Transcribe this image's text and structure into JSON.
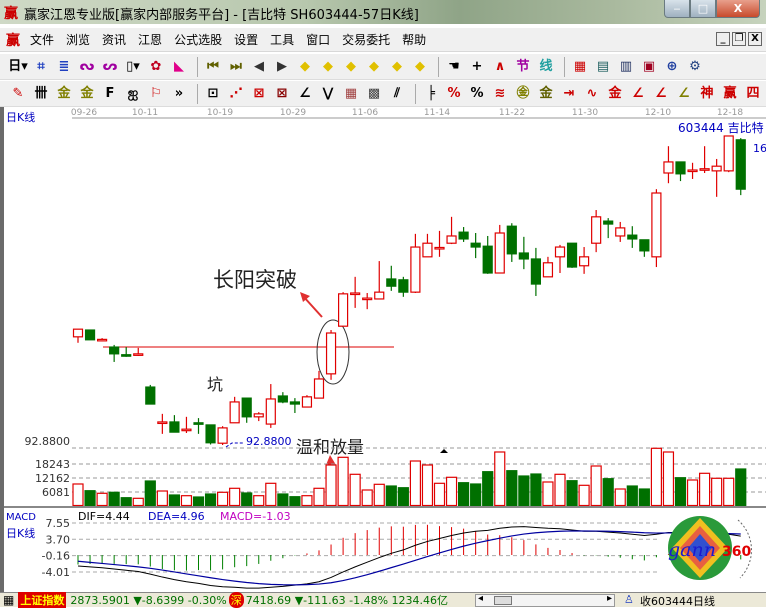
{
  "window": {
    "title": "赢家江恩专业版[赢家内部服务平台] - [吉比特  SH603444-57日K线]",
    "logo": "赢",
    "min_label": "‒",
    "max_label": "□",
    "close_label": "X"
  },
  "menu": {
    "logo": "赢",
    "items": [
      "文件",
      "浏览",
      "资讯",
      "江恩",
      "公式选股",
      "设置",
      "工具",
      "窗口",
      "交易委托",
      "帮助"
    ],
    "mdi_buttons": [
      "_",
      "❐",
      "X"
    ]
  },
  "toolbar1": [
    {
      "icon": "period-day-dropdown",
      "glyph": "日▾",
      "color": "#000"
    },
    {
      "icon": "kline-view-icon",
      "glyph": "⌗",
      "color": "#2040c0"
    },
    {
      "icon": "document-icon",
      "glyph": "≣",
      "color": "#2040c0"
    },
    {
      "icon": "chart-3-icon",
      "glyph": "ᔓ",
      "color": "#a000a0"
    },
    {
      "icon": "chart-9-icon",
      "glyph": "ᔕ",
      "color": "#a000a0"
    },
    {
      "icon": "candle-dropdown-icon",
      "glyph": "▯▾",
      "color": "#000"
    },
    {
      "icon": "pattern-icon",
      "glyph": "✿",
      "color": "#c00020"
    },
    {
      "icon": "flag-icon",
      "glyph": "◣",
      "color": "#e0008a"
    },
    {
      "sep": true
    },
    {
      "icon": "first-icon",
      "glyph": "⏮",
      "color": "#606000"
    },
    {
      "icon": "last-icon",
      "glyph": "⏭",
      "color": "#606000"
    },
    {
      "icon": "prev-icon",
      "glyph": "◀",
      "color": "#333"
    },
    {
      "icon": "next-icon",
      "glyph": "▶",
      "color": "#333"
    },
    {
      "icon": "nav-left-diamond-icon",
      "glyph": "◆",
      "color": "#e0c000"
    },
    {
      "icon": "nav-right-diamond-icon",
      "glyph": "◆",
      "color": "#e0c000"
    },
    {
      "icon": "zoom-h-diamond-icon",
      "glyph": "◆",
      "color": "#e0c000"
    },
    {
      "icon": "shrink-h-diamond-icon",
      "glyph": "◆",
      "color": "#e0c000"
    },
    {
      "icon": "expand-diamond-icon",
      "glyph": "◆",
      "color": "#e0c000"
    },
    {
      "icon": "move-diamond-icon",
      "glyph": "◆",
      "color": "#e0c000"
    },
    {
      "sep": true
    },
    {
      "icon": "hand-icon",
      "glyph": "☚",
      "color": "#000"
    },
    {
      "icon": "crosshair-icon",
      "glyph": "+",
      "color": "#000"
    },
    {
      "icon": "draw-line-icon",
      "glyph": "∧",
      "color": "#c00"
    },
    {
      "icon": "festival-icon",
      "glyph": "节",
      "color": "#a000a0"
    },
    {
      "icon": "cycle-icon",
      "glyph": "线",
      "color": "#20a0a0"
    },
    {
      "sep": true
    },
    {
      "icon": "calendar-icon",
      "glyph": "▦",
      "color": "#c00"
    },
    {
      "icon": "calculator-icon",
      "glyph": "▤",
      "color": "#206060"
    },
    {
      "icon": "notes-icon",
      "glyph": "▥",
      "color": "#203060"
    },
    {
      "icon": "save-icon",
      "glyph": "▣",
      "color": "#a00020"
    },
    {
      "icon": "network-icon",
      "glyph": "⊕",
      "color": "#2040a0"
    },
    {
      "icon": "trade-icon",
      "glyph": "⚙",
      "color": "#204080"
    }
  ],
  "toolbar2": [
    {
      "icon": "pen-icon",
      "glyph": "✎",
      "color": "#c00"
    },
    {
      "icon": "grid-lines-icon",
      "glyph": "卌",
      "color": "#000"
    },
    {
      "icon": "gold-1-icon",
      "glyph": "金",
      "color": "#808000"
    },
    {
      "icon": "gold-2-icon",
      "glyph": "金",
      "color": "#808000"
    },
    {
      "icon": "f-tool-icon",
      "glyph": "F",
      "color": "#000"
    },
    {
      "icon": "spiral-icon",
      "glyph": "ஐ",
      "color": "#000"
    },
    {
      "icon": "rocket-icon",
      "glyph": "⚐",
      "color": "#c00"
    },
    {
      "icon": "more-icon",
      "glyph": "»",
      "color": "#000"
    },
    {
      "sep": true
    },
    {
      "icon": "box-tool-icon",
      "glyph": "⊡",
      "color": "#000"
    },
    {
      "icon": "fan-lines-icon",
      "glyph": "⋰",
      "color": "#c00"
    },
    {
      "icon": "gann-box-icon",
      "glyph": "⊠",
      "color": "#c00"
    },
    {
      "icon": "gann-square-icon",
      "glyph": "⊠",
      "color": "#800"
    },
    {
      "icon": "angle-icon",
      "glyph": "∠",
      "color": "#000"
    },
    {
      "icon": "wave-icon",
      "glyph": "⋁",
      "color": "#000"
    },
    {
      "icon": "grid-square-icon",
      "glyph": "▦",
      "color": "#a04040"
    },
    {
      "icon": "grid-square-2-icon",
      "glyph": "▩",
      "color": "#404040"
    },
    {
      "icon": "parallel-lines-icon",
      "glyph": "⫽",
      "color": "#000"
    },
    {
      "sep": true
    },
    {
      "icon": "ruler-icon",
      "glyph": "╞",
      "color": "#000"
    },
    {
      "icon": "percent-red-icon",
      "glyph": "%",
      "color": "#c00"
    },
    {
      "icon": "percent-icon",
      "glyph": "%",
      "color": "#000"
    },
    {
      "icon": "percent-lines-icon",
      "glyph": "≋",
      "color": "#c00"
    },
    {
      "icon": "gold-circle-icon",
      "glyph": "㊎",
      "color": "#808000"
    },
    {
      "icon": "gold-lines-icon",
      "glyph": "金",
      "color": "#606000"
    },
    {
      "icon": "arrow-tool-icon",
      "glyph": "⇥",
      "color": "#c00"
    },
    {
      "icon": "wave-lines-icon",
      "glyph": "∿",
      "color": "#c00"
    },
    {
      "icon": "gold-red-icon",
      "glyph": "金",
      "color": "#c00"
    },
    {
      "icon": "j-angle-icon",
      "glyph": "∠",
      "color": "#c00"
    },
    {
      "icon": "f-angle-icon",
      "glyph": "∠",
      "color": "#c00"
    },
    {
      "icon": "gold-angle-icon",
      "glyph": "∠",
      "color": "#808000"
    },
    {
      "icon": "god-angle-icon",
      "glyph": "神",
      "color": "#c00"
    },
    {
      "icon": "win-angle-icon",
      "glyph": "赢",
      "color": "#c00"
    },
    {
      "icon": "four-angle-icon",
      "glyph": "四",
      "color": "#c00"
    }
  ],
  "chart": {
    "period_label": "日K线",
    "stock_label": "603444  吉比特",
    "high_label_partial": "16",
    "low_axis_label": "92.8800",
    "low_marker_label": "92.8800",
    "dates": [
      "09-26",
      "10-11",
      "10-19",
      "10-29",
      "11-06",
      "11-14",
      "11-22",
      "11-30",
      "12-10",
      "12-18"
    ],
    "volume_axis": [
      "18243",
      "12162",
      "6081"
    ],
    "annotations": {
      "breakout": "长阳突破",
      "pit": "坑",
      "volume": "温和放量"
    },
    "colors": {
      "up": "#e00000",
      "down": "#007000",
      "annotation_arrow": "#e03030",
      "label_blue": "#0000c0"
    }
  },
  "chart_data": {
    "type": "candlestick",
    "ohlc_order": [
      "open",
      "high",
      "low",
      "close"
    ],
    "candles": [
      [
        118.3,
        120.1,
        116.9,
        120.1
      ],
      [
        119.9,
        119.9,
        117.6,
        117.6
      ],
      [
        117.6,
        118.0,
        117.2,
        117.7
      ],
      [
        115.9,
        116.4,
        112.4,
        114.3
      ],
      [
        114.1,
        115.9,
        113.6,
        114.0
      ],
      [
        114.2,
        115.7,
        113.8,
        114.3
      ],
      [
        106.5,
        107.0,
        102.5,
        102.5
      ],
      [
        98.2,
        100.2,
        95.5,
        98.3
      ],
      [
        98.3,
        99.9,
        95.9,
        95.9
      ],
      [
        96.5,
        99.5,
        95.7,
        96.6
      ],
      [
        98.1,
        99.2,
        95.5,
        98.0
      ],
      [
        97.6,
        97.6,
        93.0,
        93.4
      ],
      [
        93.3,
        97.3,
        92.88,
        96.9
      ],
      [
        98.1,
        104.2,
        98.1,
        103.0
      ],
      [
        103.9,
        103.9,
        98.1,
        99.5
      ],
      [
        99.5,
        100.6,
        98.5,
        100.2
      ],
      [
        97.8,
        107.2,
        96.9,
        103.7
      ],
      [
        104.4,
        105.3,
        102.7,
        103.0
      ],
      [
        103.0,
        103.9,
        100.4,
        102.5
      ],
      [
        101.8,
        104.6,
        101.8,
        104.2
      ],
      [
        103.9,
        110.3,
        103.9,
        108.4
      ],
      [
        109.6,
        119.9,
        108.2,
        119.2
      ],
      [
        120.8,
        128.8,
        120.8,
        128.4
      ],
      [
        128.5,
        132.4,
        125.1,
        128.6
      ],
      [
        127.3,
        128.6,
        124.8,
        127.4
      ],
      [
        127.2,
        136.1,
        127.2,
        128.8
      ],
      [
        131.9,
        135.0,
        129.1,
        130.2
      ],
      [
        131.7,
        132.4,
        127.7,
        128.8
      ],
      [
        128.8,
        142.5,
        128.6,
        139.4
      ],
      [
        137.1,
        142.5,
        137.1,
        140.3
      ],
      [
        139.2,
        143.2,
        137.1,
        139.3
      ],
      [
        140.3,
        146.5,
        140.1,
        142.0
      ],
      [
        142.9,
        144.1,
        140.6,
        141.3
      ],
      [
        140.3,
        142.7,
        136.8,
        139.4
      ],
      [
        139.6,
        142.0,
        133.1,
        133.3
      ],
      [
        133.3,
        144.6,
        133.3,
        142.7
      ],
      [
        144.3,
        145.0,
        135.9,
        137.8
      ],
      [
        138.0,
        141.8,
        134.2,
        136.6
      ],
      [
        136.6,
        139.2,
        127.9,
        130.7
      ],
      [
        132.4,
        137.1,
        132.4,
        135.7
      ],
      [
        137.1,
        139.9,
        133.3,
        139.4
      ],
      [
        140.3,
        140.3,
        134.5,
        134.7
      ],
      [
        135.0,
        139.4,
        133.1,
        137.1
      ],
      [
        140.3,
        148.1,
        138.2,
        146.5
      ],
      [
        145.5,
        146.2,
        141.5,
        144.8
      ],
      [
        142.0,
        145.3,
        140.6,
        143.9
      ],
      [
        142.2,
        144.3,
        139.2,
        141.3
      ],
      [
        141.1,
        141.1,
        137.1,
        138.5
      ],
      [
        137.1,
        153.0,
        134.7,
        152.1
      ],
      [
        156.8,
        163.1,
        154.4,
        159.4
      ],
      [
        159.4,
        159.4,
        154.9,
        156.6
      ],
      [
        157.4,
        159.2,
        155.4,
        157.5
      ],
      [
        157.7,
        163.1,
        156.8,
        157.8
      ],
      [
        157.3,
        160.1,
        151.2,
        158.4
      ],
      [
        157.3,
        165.5,
        157.0,
        165.5
      ],
      [
        164.6,
        165.0,
        151.6,
        153.0
      ]
    ],
    "volume": [
      9480,
      6520,
      5380,
      5820,
      3440,
      3170,
      10800,
      6390,
      4630,
      4320,
      3750,
      5070,
      5820,
      7580,
      5510,
      4320,
      9780,
      5070,
      3880,
      4320,
      7580,
      17850,
      21240,
      13750,
      6830,
      9340,
      8590,
      7840,
      19610,
      17850,
      9780,
      12430,
      10050,
      9480,
      14900,
      23580,
      15340,
      13000,
      13880,
      10360,
      13750,
      10930,
      8900,
      17410,
      11810,
      7270,
      8590,
      7270,
      25210,
      23580,
      12250,
      11240,
      14190,
      11990,
      11990,
      16090
    ],
    "volume_ticks": [
      6081,
      12162,
      18243
    ],
    "price_low": 92.88,
    "macd": {
      "title": "MACD",
      "period_label": "日K线",
      "dif_label": "DIF=4.44",
      "dea_label": "DEA=4.96",
      "macd_label": "MACD=-1.03",
      "axis_ticks": [
        "7.55",
        "3.70",
        "-0.16",
        "-4.01"
      ],
      "dif": [
        -2.6,
        -2.8,
        -3.0,
        -3.3,
        -3.6,
        -3.9,
        -4.5,
        -5.2,
        -5.8,
        -6.3,
        -6.7,
        -7.2,
        -7.5,
        -7.6,
        -7.8,
        -7.8,
        -7.6,
        -7.4,
        -7.1,
        -6.8,
        -6.3,
        -5.3,
        -4.0,
        -2.8,
        -1.7,
        -0.6,
        0.4,
        1.2,
        2.3,
        3.2,
        3.9,
        4.6,
        5.2,
        5.6,
        5.8,
        6.3,
        6.6,
        6.7,
        6.5,
        6.3,
        6.2,
        5.9,
        5.6,
        5.6,
        5.4,
        5.2,
        4.9,
        4.6,
        4.9,
        5.3,
        5.3,
        5.1,
        5.0,
        4.8,
        4.9,
        4.44
      ],
      "dea": [
        -1.48,
        -1.74,
        -1.99,
        -2.25,
        -2.52,
        -2.8,
        -3.14,
        -3.55,
        -4.0,
        -4.46,
        -4.91,
        -5.37,
        -5.8,
        -6.16,
        -6.49,
        -6.75,
        -6.92,
        -7.02,
        -7.04,
        -6.99,
        -6.85,
        -6.54,
        -6.03,
        -5.38,
        -4.64,
        -3.83,
        -2.98,
        -2.14,
        -1.25,
        -0.36,
        0.49,
        1.31,
        2.09,
        2.79,
        3.39,
        3.97,
        4.5,
        4.94,
        5.25,
        5.46,
        5.61,
        5.67,
        5.66,
        5.65,
        5.6,
        5.52,
        5.4,
        5.24,
        5.17,
        5.2,
        5.22,
        5.2,
        5.16,
        5.09,
        5.05,
        4.96
      ]
    }
  },
  "logo": {
    "text": "gann",
    "number": "360"
  },
  "status": {
    "index_name": "上证指数",
    "sh_value": "2873.5901",
    "sh_change": "▼-8.6399",
    "sh_pct": "-0.30%",
    "sz_badge": "深",
    "sz_value": "7418.69",
    "sz_change": "▼-111.63",
    "sz_pct": "-1.48%",
    "turnover": "1234.46亿",
    "scroll_left": "◂",
    "scroll_right": "▸",
    "right_label": "收603444日线"
  }
}
